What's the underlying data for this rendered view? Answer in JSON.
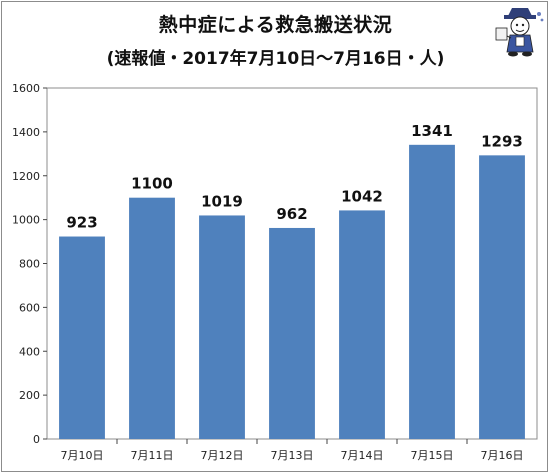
{
  "header": {
    "title": "熱中症による救急搬送状況",
    "subtitle": "(速報値・2017年7月10日～7月16日・人)"
  },
  "chart_data": {
    "type": "bar",
    "title": "熱中症による救急搬送状況",
    "subtitle": "(速報値・2017年7月10日～7月16日・人)",
    "categories": [
      "7月10日",
      "7月11日",
      "7月12日",
      "7月13日",
      "7月14日",
      "7月15日",
      "7月16日"
    ],
    "values": [
      923,
      1100,
      1019,
      962,
      1042,
      1341,
      1293
    ],
    "ylim": [
      0,
      1600
    ],
    "yticks": [
      0,
      200,
      400,
      600,
      800,
      1000,
      1200,
      1400,
      1600
    ],
    "grid": false,
    "bar_color": "#4f81bd",
    "data_labels": true,
    "legend": "none"
  },
  "decoration": {
    "icon": "cartoon-character-icon"
  }
}
